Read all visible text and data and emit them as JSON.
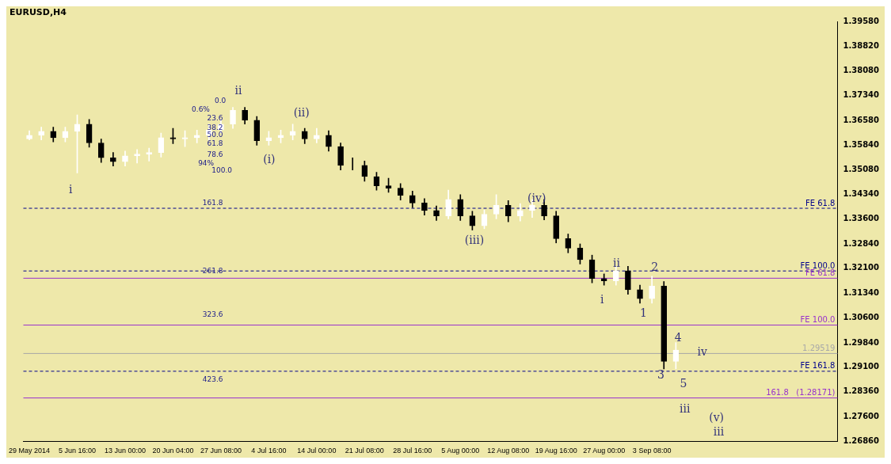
{
  "chart_data": {
    "type": "candlestick",
    "title": "EURUSD,H4",
    "categories": [
      "29 May 2014",
      null,
      null,
      null,
      "5 Jun 16:00",
      null,
      null,
      null,
      "13 Jun 00:00",
      null,
      null,
      null,
      "20 Jun 04:00",
      null,
      null,
      null,
      "27 Jun 08:00",
      null,
      null,
      null,
      "4 Jul 16:00",
      null,
      null,
      null,
      "14 Jul 00:00",
      null,
      null,
      null,
      "21 Jul 08:00",
      null,
      null,
      null,
      "28 Jul 16:00",
      null,
      null,
      null,
      "5 Aug 00:00",
      null,
      null,
      null,
      "12 Aug 08:00",
      null,
      null,
      null,
      "19 Aug 16:00",
      null,
      null,
      null,
      "27 Aug 00:00",
      null,
      null,
      null,
      "3 Sep 08:00",
      null,
      null,
      null,
      null,
      null,
      null,
      null,
      null,
      null,
      null,
      null,
      null,
      null,
      null,
      null
    ],
    "ohlc": [
      [
        1.3602,
        1.3627,
        1.3599,
        1.3613
      ],
      [
        1.3613,
        1.3638,
        1.3599,
        1.3625
      ],
      [
        1.3625,
        1.3638,
        1.3593,
        1.3606
      ],
      [
        1.3606,
        1.3638,
        1.3593,
        1.3625
      ],
      [
        1.3625,
        1.3675,
        1.3499,
        1.3647
      ],
      [
        1.3647,
        1.3661,
        1.3577,
        1.359
      ],
      [
        1.359,
        1.3602,
        1.3531,
        1.3545
      ],
      [
        1.3545,
        1.3561,
        1.352,
        1.3533
      ],
      [
        1.3533,
        1.3565,
        1.352,
        1.3551
      ],
      [
        1.3551,
        1.357,
        1.3529,
        1.3556
      ],
      [
        1.3556,
        1.3574,
        1.3535,
        1.3561
      ],
      [
        1.3561,
        1.362,
        1.3547,
        1.3606
      ],
      [
        1.3606,
        1.3634,
        1.3588,
        1.3602
      ],
      [
        1.3602,
        1.3627,
        1.3579,
        1.3606
      ],
      [
        1.3606,
        1.3629,
        1.359,
        1.3613
      ],
      [
        1.3613,
        1.3647,
        1.3599,
        1.3629
      ],
      [
        1.3629,
        1.3661,
        1.362,
        1.3647
      ],
      [
        1.3647,
        1.3698,
        1.3634,
        1.3689
      ],
      [
        1.3689,
        1.3698,
        1.3647,
        1.3659
      ],
      [
        1.3659,
        1.367,
        1.3583,
        1.3597
      ],
      [
        1.3597,
        1.3625,
        1.3583,
        1.3606
      ],
      [
        1.3606,
        1.3629,
        1.359,
        1.3613
      ],
      [
        1.3613,
        1.3647,
        1.3599,
        1.3625
      ],
      [
        1.3625,
        1.3634,
        1.3588,
        1.3602
      ],
      [
        1.3602,
        1.3634,
        1.359,
        1.3613
      ],
      [
        1.3613,
        1.3627,
        1.3565,
        1.3579
      ],
      [
        1.3579,
        1.359,
        1.3508,
        1.3522
      ],
      [
        1.3522,
        1.3545,
        1.3508,
        1.3522
      ],
      [
        1.3522,
        1.3535,
        1.3474,
        1.3488
      ],
      [
        1.3488,
        1.3501,
        1.3447,
        1.346
      ],
      [
        1.346,
        1.3483,
        1.344,
        1.3453
      ],
      [
        1.3453,
        1.3467,
        1.3417,
        1.3431
      ],
      [
        1.3431,
        1.3444,
        1.3394,
        1.3408
      ],
      [
        1.3408,
        1.3421,
        1.3371,
        1.3385
      ],
      [
        1.3385,
        1.3399,
        1.3355,
        1.3369
      ],
      [
        1.3369,
        1.3447,
        1.336,
        1.3419
      ],
      [
        1.3419,
        1.3433,
        1.3355,
        1.3369
      ],
      [
        1.3369,
        1.3383,
        1.3326,
        1.3339
      ],
      [
        1.3339,
        1.3387,
        1.333,
        1.3374
      ],
      [
        1.3374,
        1.3433,
        1.336,
        1.3401
      ],
      [
        1.3401,
        1.3415,
        1.3351,
        1.3369
      ],
      [
        1.3369,
        1.3406,
        1.3353,
        1.3385
      ],
      [
        1.3385,
        1.3419,
        1.3364,
        1.3401
      ],
      [
        1.3401,
        1.3419,
        1.3357,
        1.3369
      ],
      [
        1.3369,
        1.3383,
        1.3287,
        1.33
      ],
      [
        1.33,
        1.3314,
        1.3257,
        1.3271
      ],
      [
        1.3271,
        1.3284,
        1.3223,
        1.3236
      ],
      [
        1.3236,
        1.325,
        1.3166,
        1.3179
      ],
      [
        1.3179,
        1.3193,
        1.3159,
        1.3172
      ],
      [
        1.3172,
        1.3216,
        1.3159,
        1.3202
      ],
      [
        1.3202,
        1.3216,
        1.3131,
        1.3145
      ],
      [
        1.3145,
        1.3159,
        1.3104,
        1.3118
      ],
      [
        1.3118,
        1.3186,
        1.3104,
        1.3156
      ],
      [
        1.3156,
        1.317,
        1.2905,
        1.2928
      ],
      [
        1.2928,
        1.2985,
        1.2905,
        1.2962
      ],
      null,
      null,
      null,
      null,
      null,
      null,
      null,
      null,
      null,
      null,
      null,
      null,
      null
    ],
    "ylim": [
      1.2686,
      1.3958
    ],
    "yticks": [
      {
        "value": 1.2686,
        "label": "1.26860"
      },
      {
        "value": 1.276,
        "label": "1.27600"
      },
      {
        "value": 1.2836,
        "label": "1.28360"
      },
      {
        "value": 1.291,
        "label": "1.29100"
      },
      {
        "value": 1.2984,
        "label": "1.29840"
      },
      {
        "value": 1.306,
        "label": "1.30600"
      },
      {
        "value": 1.3134,
        "label": "1.31340"
      },
      {
        "value": 1.321,
        "label": "1.32100"
      },
      {
        "value": 1.3284,
        "label": "1.32840"
      },
      {
        "value": 1.336,
        "label": "1.33600"
      },
      {
        "value": 1.3434,
        "label": "1.34340"
      },
      {
        "value": 1.3508,
        "label": "1.35080"
      },
      {
        "value": 1.3584,
        "label": "1.35840"
      },
      {
        "value": 1.3658,
        "label": "1.36580"
      },
      {
        "value": 1.3734,
        "label": "1.37340"
      },
      {
        "value": 1.3808,
        "label": "1.38080"
      },
      {
        "value": 1.3882,
        "label": "1.38820"
      },
      {
        "value": 1.3958,
        "label": "1.39580"
      }
    ],
    "ref_lines": [
      {
        "axis": "y",
        "value": 1.3392,
        "label": "FE 61.8",
        "color": "#00008b",
        "line_style": "dashed"
      },
      {
        "axis": "y",
        "value": 1.3202,
        "label": "FE 100.0",
        "color": "#00008b",
        "line_style": "dashed"
      },
      {
        "axis": "y",
        "value": 1.318,
        "label": "FE 61.8",
        "color": "#9932cc",
        "line_style": "solid"
      },
      {
        "axis": "y",
        "value": 1.3038,
        "label": "FE 100.0",
        "color": "#9932cc",
        "line_style": "solid"
      },
      {
        "axis": "y",
        "value": 1.29519,
        "label": "1.29519",
        "color": "#a8a8a8",
        "line_style": "solid"
      },
      {
        "axis": "y",
        "value": 1.2898,
        "label": "FE 161.8",
        "color": "#00008b",
        "line_style": "dashed"
      },
      {
        "axis": "y",
        "value": 1.28171,
        "label": "161.8   (1.28171)",
        "color": "#9932cc",
        "line_style": "solid"
      }
    ],
    "annotations": [
      "0.0",
      "0.6%",
      "23.6",
      "38.2",
      "50.0",
      "61.8",
      "78.6",
      "94%",
      "100.0",
      "161.8",
      "261.8",
      "323.6",
      "423.6",
      "ii",
      "i",
      "(i)",
      "(ii)",
      "(iii)",
      "(iv)",
      "i",
      "ii",
      "1",
      "2",
      "3",
      "4",
      "5",
      "iii",
      "iv",
      "(v)",
      "iii"
    ],
    "colors": [
      "#ffffff",
      "#ffffff",
      "#000000",
      "#ffffff",
      "#ffffff",
      "#000000",
      "#000000",
      "#000000",
      "#ffffff",
      "#ffffff",
      "#ffffff",
      "#ffffff",
      "#000000",
      "#ffffff",
      "#ffffff",
      "#ffffff",
      "#ffffff",
      "#ffffff",
      "#000000",
      "#000000",
      "#ffffff",
      "#ffffff",
      "#ffffff",
      "#000000",
      "#ffffff",
      "#000000",
      "#000000",
      "#000000",
      "#000000",
      "#000000",
      "#000000",
      "#000000",
      "#000000",
      "#000000",
      "#000000",
      "#ffffff",
      "#000000",
      "#000000",
      "#ffffff",
      "#ffffff",
      "#000000",
      "#ffffff",
      "#ffffff",
      "#000000",
      "#000000",
      "#000000",
      "#000000",
      "#000000",
      "#000000",
      "#ffffff",
      "#000000",
      "#000000",
      "#ffffff",
      "#000000",
      "#ffffff",
      null,
      null,
      null,
      null,
      null,
      null,
      null,
      null,
      null,
      null,
      null,
      null,
      null
    ]
  }
}
